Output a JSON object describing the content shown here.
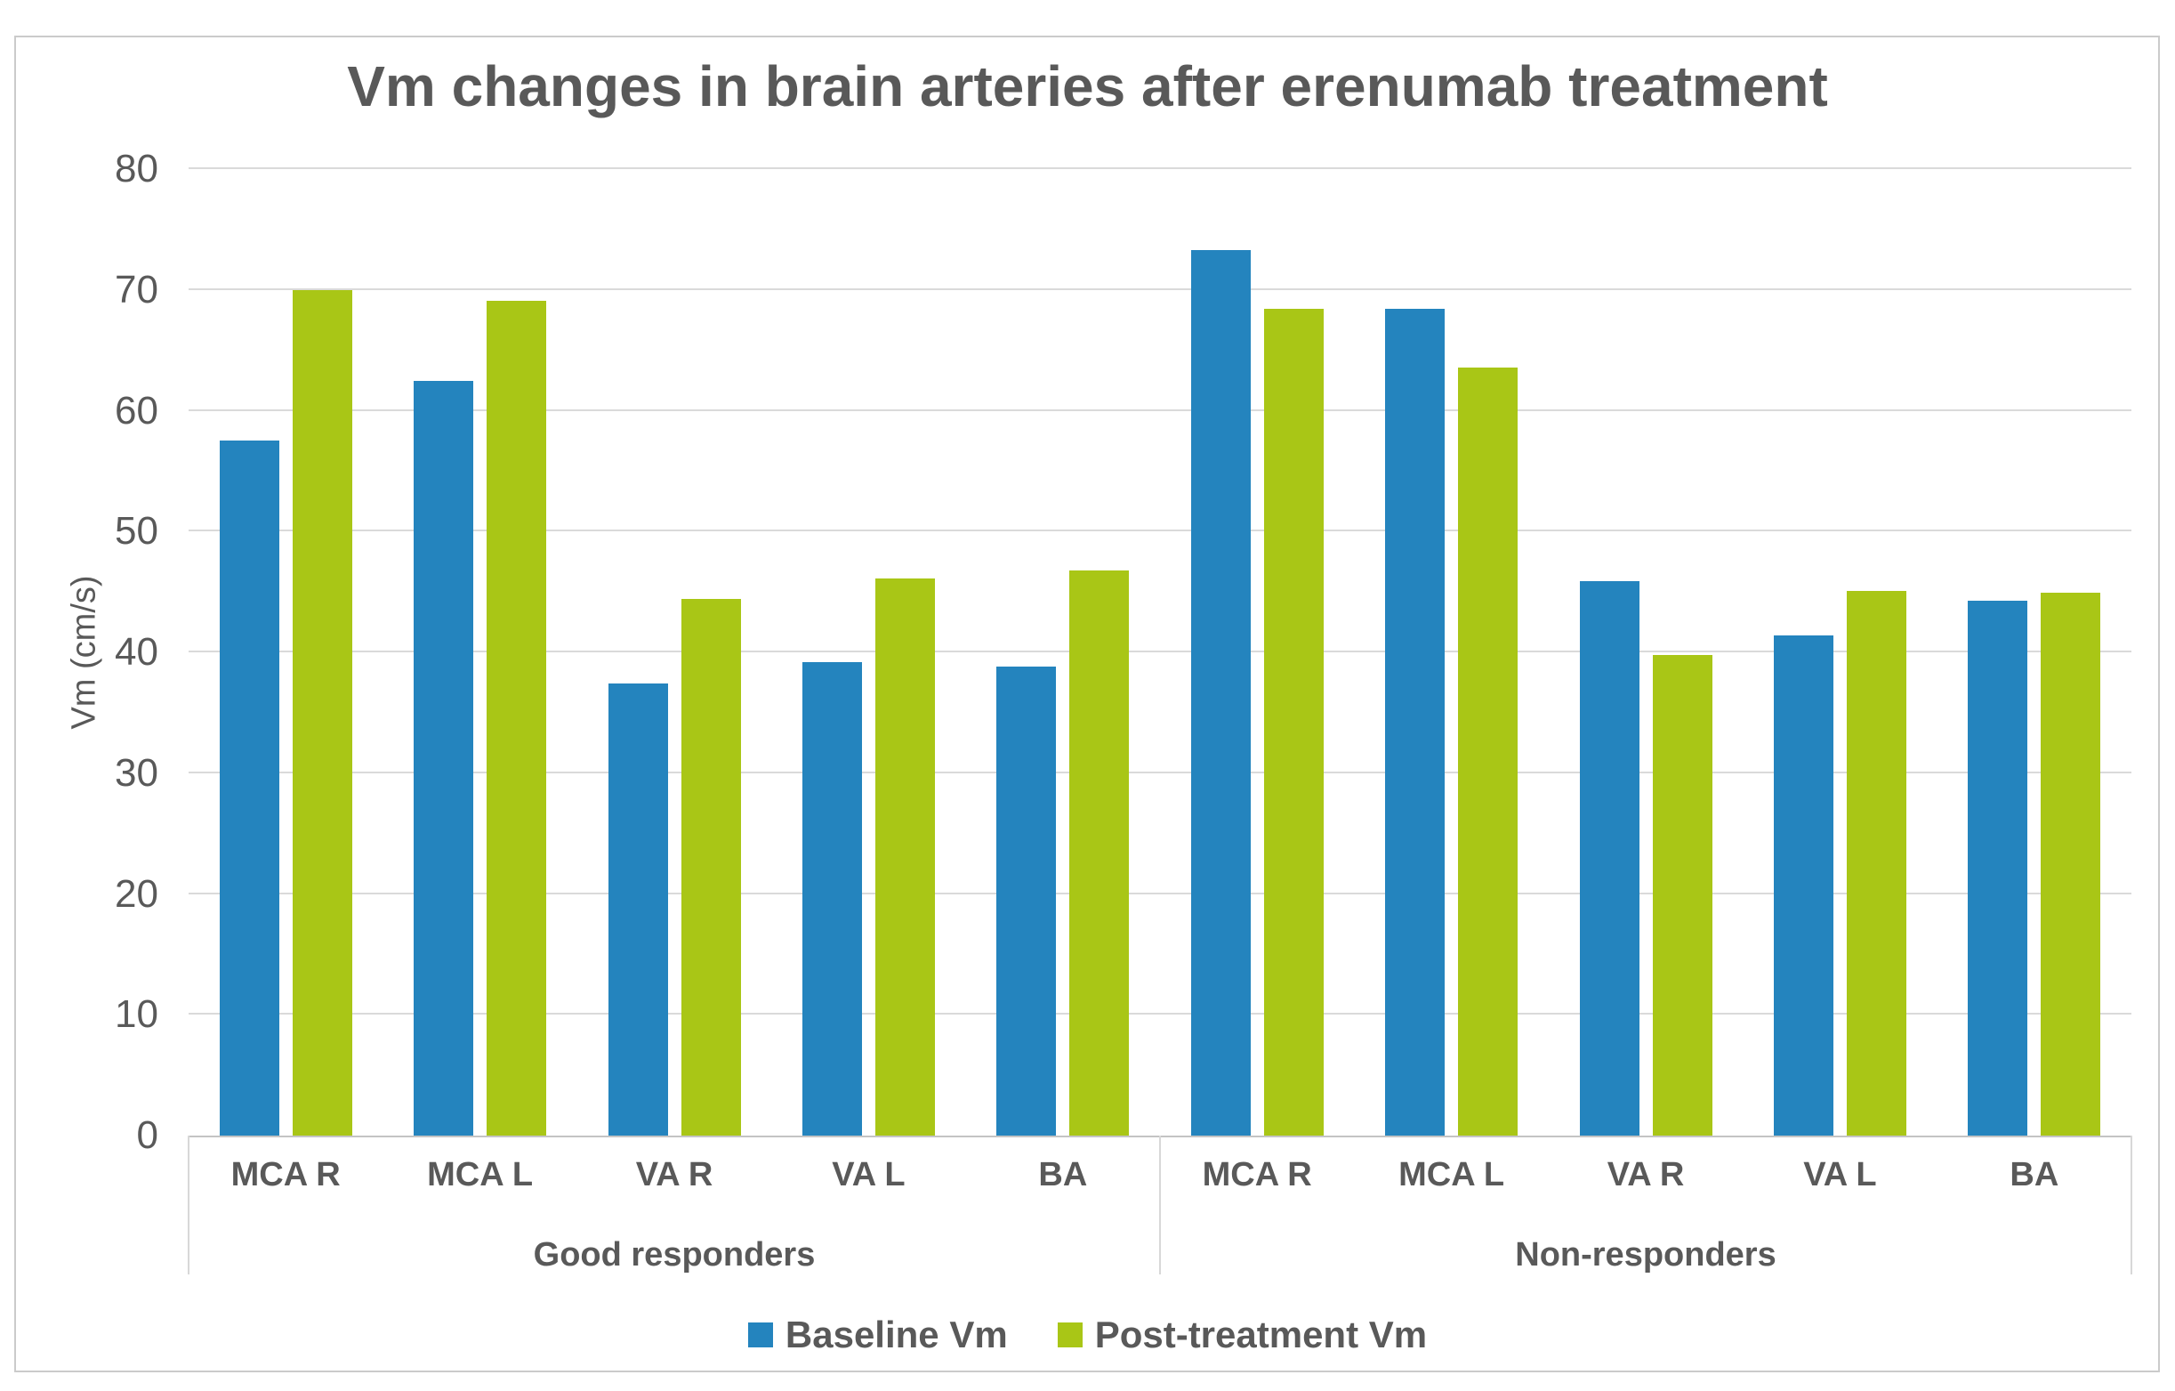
{
  "chart_data": {
    "type": "bar",
    "title": "Vm changes in brain arteries after erenumab treatment",
    "ylabel": "Vm (cm/s)",
    "xlabel": "",
    "ylim": [
      0,
      80
    ],
    "yticks": [
      0,
      10,
      20,
      30,
      40,
      50,
      60,
      70,
      80
    ],
    "grid": true,
    "legend_position": "bottom-center",
    "text_color": "#595959",
    "gridline_color": "#DADADA",
    "axis_line_color": "#C4C4C4",
    "groups": [
      {
        "label": "Good responders",
        "categories": [
          "MCA R",
          "MCA L",
          "VA R",
          "VA L",
          "BA"
        ]
      },
      {
        "label": "Non-responders",
        "categories": [
          "MCA R",
          "MCA L",
          "VA R",
          "VA L",
          "BA"
        ]
      }
    ],
    "series": [
      {
        "name": "Baseline Vm",
        "color": "#2484BE",
        "values": [
          [
            57.5,
            62.5,
            37.4,
            39.2,
            38.8
          ],
          [
            73.3,
            68.4,
            45.9,
            41.4,
            44.3
          ]
        ]
      },
      {
        "name": "Post-treatment Vm",
        "color": "#A9C616",
        "values": [
          [
            70.0,
            69.1,
            44.4,
            46.1,
            46.8
          ],
          [
            68.4,
            63.6,
            39.8,
            45.1,
            44.9
          ]
        ]
      }
    ]
  }
}
